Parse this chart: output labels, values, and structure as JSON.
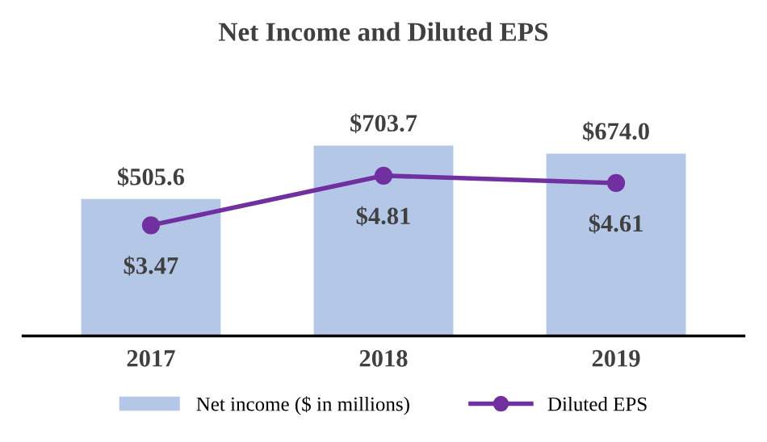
{
  "chart_data": {
    "type": "bar",
    "title": "Net Income and Diluted EPS",
    "categories": [
      "2017",
      "2018",
      "2019"
    ],
    "series": [
      {
        "name": "Net income ($ in millions)",
        "color": "#b4c7e7",
        "values": [
          505.6,
          703.7,
          674.0
        ],
        "value_labels": [
          "$505.6",
          "$703.7",
          "$674.0"
        ]
      },
      {
        "name": "Diluted EPS",
        "type": "line",
        "axis": "y2",
        "color": "#7030a0",
        "marker": "circle",
        "values": [
          3.47,
          4.81,
          4.61
        ],
        "value_labels": [
          "$3.47",
          "$4.81",
          "$4.61"
        ]
      }
    ],
    "legend": "bottom",
    "tick_labels": "x"
  }
}
